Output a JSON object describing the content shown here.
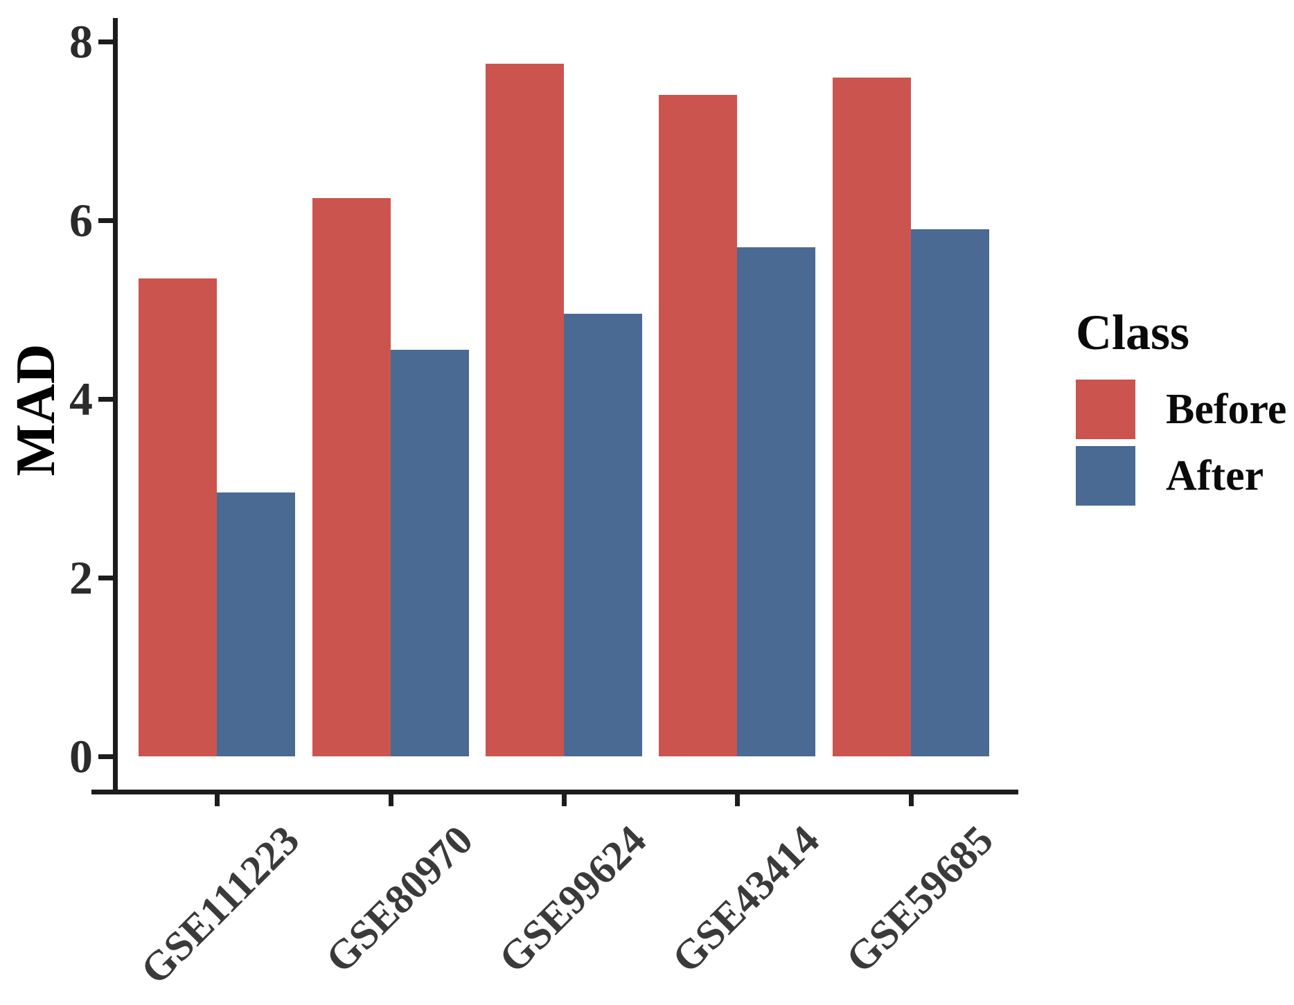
{
  "chart_data": {
    "type": "bar",
    "bar_grouping": "dodged",
    "title": "",
    "xlabel": "",
    "ylabel": "MAD",
    "categories": [
      "GSE111223",
      "GSE80970",
      "GSE99624",
      "GSE43414",
      "GSE59685"
    ],
    "series": [
      {
        "name": "Before",
        "color": "#CB544E",
        "values": [
          5.35,
          6.25,
          7.75,
          7.4,
          7.6
        ]
      },
      {
        "name": "After",
        "color": "#4A6A94",
        "values": [
          2.95,
          4.55,
          4.95,
          5.7,
          5.9
        ]
      }
    ],
    "ylim": [
      0,
      8
    ],
    "yticks": [
      0,
      2,
      4,
      6,
      8
    ],
    "grid": false,
    "x_label_angle_deg": -45,
    "legend": {
      "title": "Class",
      "position": "right"
    },
    "colors": {
      "axis": "#1c1c1c",
      "y_tick_label": "#2b2b2b",
      "x_tick_label": "#3a3a3a",
      "background": "#ffffff"
    }
  }
}
